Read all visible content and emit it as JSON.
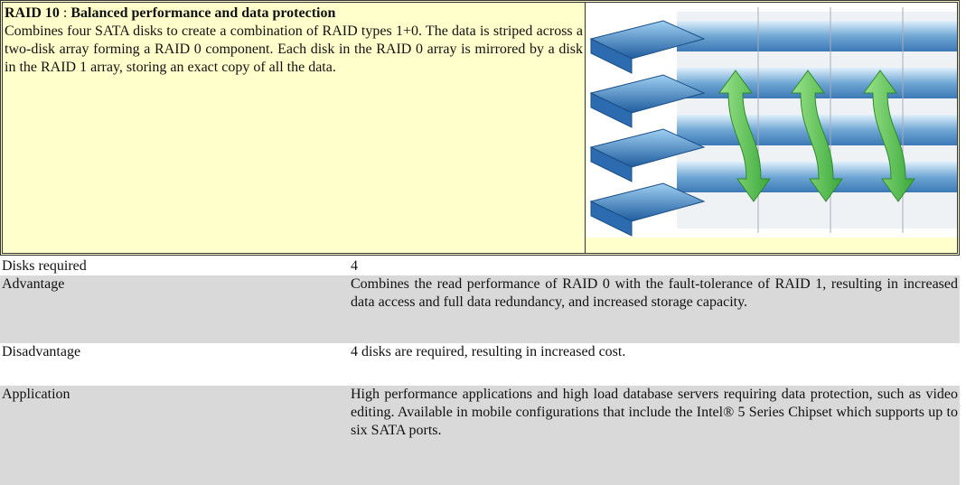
{
  "header": {
    "title": "RAID 10",
    "separator": ":",
    "subtitle": "Balanced performance and data protection",
    "description": "Combines four SATA disks to create a combination of RAID types 1+0. The data is striped across a two-disk array forming a RAID 0 component. Each disk in the RAID 0 array is mirrored by a disk in the RAID 1 array, storing an exact copy of all the data."
  },
  "table": {
    "rows": [
      [
        "Disks required",
        "4"
      ],
      [
        "Advantage",
        "Combines the read performance of RAID 0 with the fault-tolerance of RAID 1, resulting in increased data access and full data redundancy, and increased storage capacity."
      ],
      [
        "Disadvantage",
        "4 disks are required, resulting in increased cost."
      ],
      [
        "Application",
        "High performance applications and high load database servers requiring data protection, such as video editing. Available in mobile configurations that include the Intel® 5 Series Chipset which supports up to six SATA ports."
      ]
    ]
  }
}
